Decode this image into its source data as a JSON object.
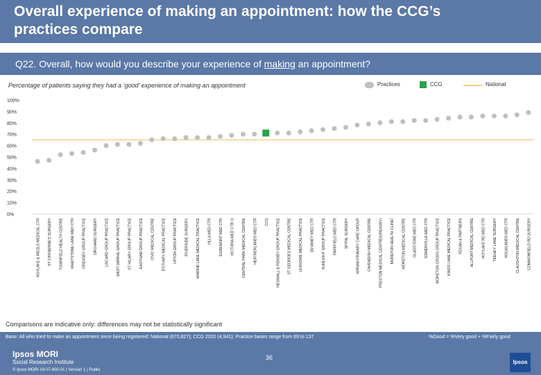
{
  "header": {
    "title": "Overall experience of making an appointment: how the CCG’s practices compare"
  },
  "question": {
    "prefix": "Q22. Overall, how would you describe your experience of ",
    "underlined": "making",
    "suffix": " an appointment?"
  },
  "legend": {
    "practices": "Practices",
    "ccg": "CCG",
    "national": "National"
  },
  "colors": {
    "practice": "#bfbfbf",
    "ccg": "#2aa14a",
    "national": "#f5d08a",
    "header": "#5b78a7"
  },
  "chart_data": {
    "type": "scatter",
    "title": "Percentage of patients saying they had a ‘good’ experience of making an appointment",
    "ylim": [
      0,
      100
    ],
    "yticks": [
      "0%",
      "10%",
      "20%",
      "30%",
      "40%",
      "50%",
      "60%",
      "70%",
      "80%",
      "90%",
      "100%"
    ],
    "national": 65,
    "categories": [
      "HOYLAKE & MEOLS MEDICAL CTR",
      "ST CATHERINE'S SURGERY",
      "TOWNFIELD HEALTH CENTRE",
      "WHETSTONE LANE MED CTR",
      "GREASBY GROUP PRACTICE",
      "ORCHARD SURGERY",
      "LISCARD GROUP PRACTICE",
      "WEST WIRRAL GROUP PRACTICE",
      "ST HILARY GROUP PRACTICE",
      "EASTHAM GROUP PRACTICE",
      "CIVIC MEDICAL CENTRE",
      "ESTUARY MEDICAL PRACTICE",
      "UPTON GROUP PRACTICE",
      "RIVERSIDE SURGERY",
      "MARINE LAKE MEDICAL PRACTICE",
      "VILLA MED CTR",
      "EGREMONT MED CTR",
      "VICTORIA MED CTR G",
      "CENTRAL PARK MEDICAL CENTRE",
      "HEATHERLANDS MED CTR",
      "CCG",
      "HESWALL & PENSBY GROUP PRACTICE",
      "ST GEORGES MEDICAL CENTRE",
      "LEASOWE MEDICAL PRACTICE",
      "DEVANEY MED CTR",
      "SUNLIGHT GROUP PRACTICE",
      "PARKFIELD MED CTR",
      "SPITAL SURGERY",
      "MIRIAM PRIMARY CARE GROUP",
      "CAVENDISH MEDICAL CENTRE",
      "PRESTON MEDICAL CENTRE(GREASBY)",
      "MORETON HEALTH CLINIC",
      "MORETON MEDICAL CENTRE",
      "GLADSTONE MED CTR",
      "SOMERVILLE MED CTR",
      "MORETON CROSS GROUP PRACTICE",
      "KINGS LANE MEDICAL PRACTICE",
      "FEGAN & PARTNERS",
      "ALLPORT MEDICAL CENTRE",
      "HOYLAKE RD MED CTR",
      "TEEHEY LANE SURGERY",
      "HOLMLANDS MED CTR",
      "CLAUGHTON MEDICAL CENTRE",
      "COMMONFIELD RD SURGERY"
    ],
    "values": [
      46,
      47,
      52,
      53,
      54,
      56,
      60,
      61,
      61,
      62,
      65,
      66,
      66,
      67,
      67,
      67,
      68,
      69,
      70,
      70,
      71,
      71,
      71,
      72,
      73,
      74,
      75,
      76,
      78,
      79,
      80,
      81,
      81,
      82,
      82,
      83,
      84,
      85,
      85,
      86,
      86,
      86,
      87,
      89
    ],
    "ccg_index": 20
  },
  "footnote": "Comparisons are indicative only: differences may not be statistically significant",
  "footer": {
    "base": "Base: All who tried to make an appointment since being registered: National (670,827); CCG 2020 (4,941); Practice bases range from 69 to 137",
    "formula": "%Good = %Very good + %Fairly good",
    "logo_main": "Ipsos MORI",
    "logo_sub": "Social Research Institute",
    "copyright": "© Ipsos MORI   19-07-800-01 | Version 1 | Public",
    "page": "36",
    "ipsos": "Ipsos"
  }
}
